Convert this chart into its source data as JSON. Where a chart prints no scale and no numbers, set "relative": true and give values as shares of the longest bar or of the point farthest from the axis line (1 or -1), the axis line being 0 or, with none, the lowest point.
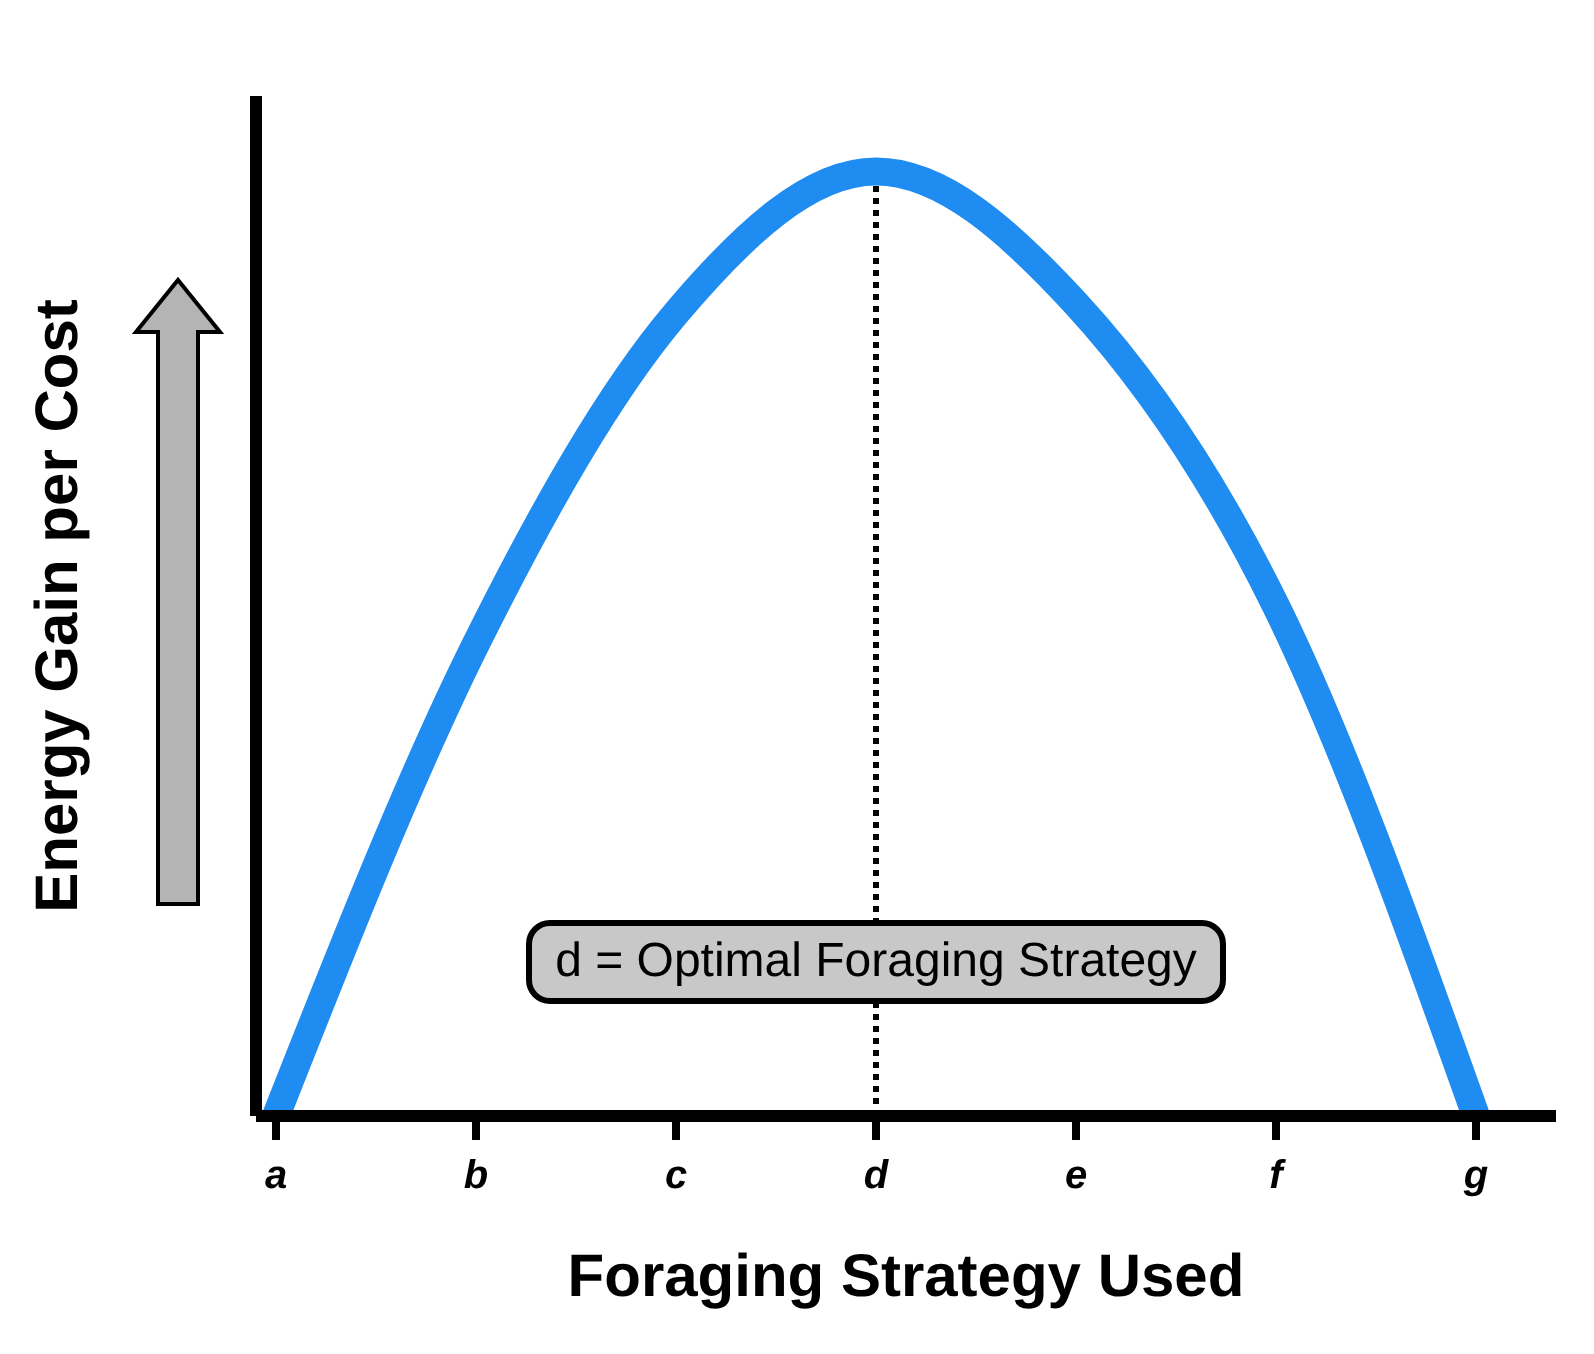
{
  "chart_data": {
    "type": "line",
    "relative": true,
    "xlabel": "Foraging Strategy Used",
    "ylabel": "Energy Gain per Cost",
    "categories": [
      "a",
      "b",
      "c",
      "d",
      "e",
      "f",
      "g"
    ],
    "series": [
      {
        "color": "#1e8cf0",
        "values": [
          0,
          0.5,
          0.85,
          1,
          0.86,
          0.54,
          0
        ]
      }
    ],
    "ref_lines": [
      {
        "axis": "x",
        "value": "d",
        "line_style": "dotted",
        "color": "#000000"
      }
    ],
    "annotations": [
      {
        "text": "d = Optimal Foraging Strategy",
        "x": "d"
      }
    ],
    "marker": "none",
    "grid": false,
    "legend": false
  }
}
